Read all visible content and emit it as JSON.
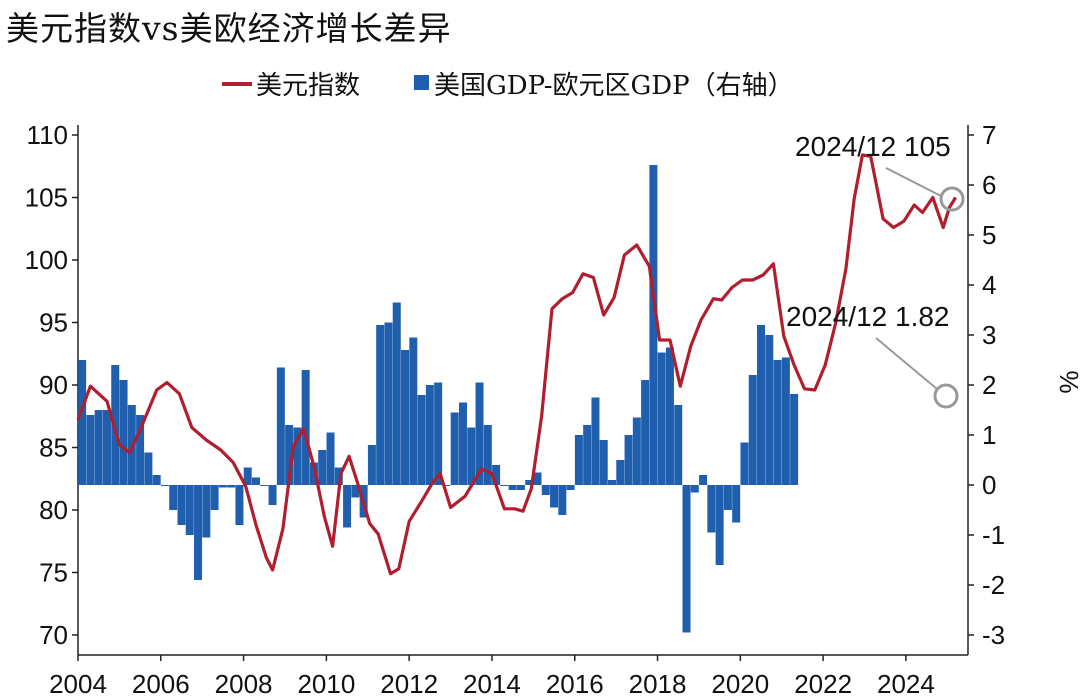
{
  "title": "美元指数vs美欧经济增长差异",
  "legend": [
    {
      "label": "美元指数",
      "color": "#b01e2f",
      "kind": "line"
    },
    {
      "label": "美国GDP-欧元区GDP（右轴）",
      "color": "#1f5fae",
      "kind": "bar"
    }
  ],
  "chart_data": {
    "type": "bar+line",
    "x_ticks": [
      "2004",
      "2006",
      "2008",
      "2010",
      "2012",
      "2014",
      "2016",
      "2018",
      "2020",
      "2022",
      "2024"
    ],
    "y_left": {
      "range": [
        68,
        112
      ],
      "ticks": [
        "70",
        "75",
        "80",
        "85",
        "90",
        "95",
        "100",
        "105",
        "110"
      ]
    },
    "y_right": {
      "label": "%",
      "range": [
        -3.3,
        7.3
      ],
      "ticks": [
        "-3",
        "-2",
        "-1",
        "0",
        "1",
        "2",
        "3",
        "4",
        "5",
        "6",
        "7"
      ]
    },
    "series": [
      {
        "name": "美元指数",
        "kind": "line",
        "axis": "left",
        "points": [
          [
            2004.0,
            87.2
          ],
          [
            2004.3,
            89.9
          ],
          [
            2004.7,
            88.7
          ],
          [
            2005.0,
            85.2
          ],
          [
            2005.25,
            84.6
          ],
          [
            2005.5,
            86.4
          ],
          [
            2005.9,
            89.6
          ],
          [
            2006.15,
            90.2
          ],
          [
            2006.45,
            89.3
          ],
          [
            2006.75,
            86.6
          ],
          [
            2007.1,
            85.6
          ],
          [
            2007.45,
            84.8
          ],
          [
            2007.75,
            83.8
          ],
          [
            2008.05,
            81.9
          ],
          [
            2008.3,
            78.8
          ],
          [
            2008.55,
            76.2
          ],
          [
            2008.7,
            75.2
          ],
          [
            2008.95,
            78.5
          ],
          [
            2009.2,
            85.1
          ],
          [
            2009.45,
            86.5
          ],
          [
            2009.7,
            83.5
          ],
          [
            2009.95,
            79.5
          ],
          [
            2010.15,
            77.1
          ],
          [
            2010.35,
            82.9
          ],
          [
            2010.55,
            84.3
          ],
          [
            2010.75,
            82.2
          ],
          [
            2011.05,
            78.9
          ],
          [
            2011.25,
            78.1
          ],
          [
            2011.55,
            74.9
          ],
          [
            2011.75,
            75.3
          ],
          [
            2012.0,
            79.1
          ],
          [
            2012.3,
            80.7
          ],
          [
            2012.55,
            82.1
          ],
          [
            2012.75,
            82.9
          ],
          [
            2013.0,
            80.2
          ],
          [
            2013.35,
            81.1
          ],
          [
            2013.75,
            83.3
          ],
          [
            2014.0,
            82.9
          ],
          [
            2014.3,
            80.1
          ],
          [
            2014.55,
            80.1
          ],
          [
            2014.75,
            79.9
          ],
          [
            2014.95,
            81.7
          ],
          [
            2015.2,
            87.5
          ],
          [
            2015.45,
            96.1
          ],
          [
            2015.7,
            96.9
          ],
          [
            2015.95,
            97.4
          ],
          [
            2016.2,
            98.9
          ],
          [
            2016.45,
            98.6
          ],
          [
            2016.7,
            95.6
          ],
          [
            2016.95,
            97.0
          ],
          [
            2017.2,
            100.4
          ],
          [
            2017.5,
            101.2
          ],
          [
            2017.8,
            99.5
          ],
          [
            2018.05,
            93.6
          ],
          [
            2018.3,
            93.6
          ],
          [
            2018.55,
            89.9
          ],
          [
            2018.8,
            93.1
          ],
          [
            2019.05,
            95.2
          ],
          [
            2019.35,
            96.9
          ],
          [
            2019.55,
            96.8
          ],
          [
            2019.8,
            97.8
          ],
          [
            2020.05,
            98.4
          ],
          [
            2020.3,
            98.4
          ],
          [
            2020.55,
            98.8
          ],
          [
            2020.8,
            99.7
          ],
          [
            2021.05,
            93.9
          ],
          [
            2021.3,
            91.6
          ],
          [
            2021.55,
            89.7
          ],
          [
            2021.8,
            89.6
          ],
          [
            2022.05,
            91.6
          ],
          [
            2022.3,
            94.9
          ],
          [
            2022.55,
            99.3
          ],
          [
            2022.75,
            104.9
          ],
          [
            2022.95,
            108.4
          ],
          [
            2023.15,
            108.3
          ],
          [
            2023.45,
            103.3
          ],
          [
            2023.7,
            102.6
          ],
          [
            2023.95,
            103.1
          ],
          [
            2024.2,
            104.4
          ],
          [
            2024.4,
            103.8
          ],
          [
            2024.65,
            105.0
          ],
          [
            2024.9,
            102.6
          ],
          [
            2025.05,
            104.2
          ],
          [
            2025.2,
            105.0
          ]
        ]
      },
      {
        "name": "美国GDP-欧元区GDP（右轴）",
        "kind": "bar",
        "axis": "right",
        "points": [
          [
            2004.1,
            2.5
          ],
          [
            2004.3,
            1.4
          ],
          [
            2004.5,
            1.5
          ],
          [
            2004.7,
            1.5
          ],
          [
            2004.9,
            2.4
          ],
          [
            2005.1,
            2.1
          ],
          [
            2005.3,
            1.6
          ],
          [
            2005.5,
            1.4
          ],
          [
            2005.7,
            0.65
          ],
          [
            2005.9,
            0.2
          ],
          [
            2006.1,
            0.0
          ],
          [
            2006.3,
            -0.5
          ],
          [
            2006.5,
            -0.8
          ],
          [
            2006.7,
            -1.0
          ],
          [
            2006.9,
            -1.9
          ],
          [
            2007.1,
            -1.05
          ],
          [
            2007.3,
            -0.5
          ],
          [
            2007.5,
            -0.05
          ],
          [
            2007.7,
            -0.05
          ],
          [
            2007.9,
            -0.8
          ],
          [
            2008.1,
            0.35
          ],
          [
            2008.3,
            0.15
          ],
          [
            2008.5,
            0.0
          ],
          [
            2008.7,
            -0.4
          ],
          [
            2008.9,
            2.35
          ],
          [
            2009.1,
            1.2
          ],
          [
            2009.3,
            1.15
          ],
          [
            2009.5,
            2.3
          ],
          [
            2009.7,
            0.45
          ],
          [
            2009.9,
            0.7
          ],
          [
            2010.1,
            1.05
          ],
          [
            2010.3,
            0.35
          ],
          [
            2010.5,
            -0.85
          ],
          [
            2010.7,
            -0.25
          ],
          [
            2010.9,
            -0.65
          ],
          [
            2011.1,
            0.8
          ],
          [
            2011.3,
            3.2
          ],
          [
            2011.5,
            3.25
          ],
          [
            2011.7,
            3.65
          ],
          [
            2011.9,
            2.7
          ],
          [
            2012.1,
            2.95
          ],
          [
            2012.3,
            1.8
          ],
          [
            2012.5,
            2.0
          ],
          [
            2012.7,
            2.05
          ],
          [
            2012.9,
            0.0
          ],
          [
            2013.1,
            1.45
          ],
          [
            2013.3,
            1.65
          ],
          [
            2013.5,
            1.15
          ],
          [
            2013.7,
            2.05
          ],
          [
            2013.9,
            1.2
          ],
          [
            2014.1,
            0.4
          ],
          [
            2014.3,
            0.0
          ],
          [
            2014.5,
            -0.1
          ],
          [
            2014.7,
            -0.1
          ],
          [
            2014.9,
            0.1
          ],
          [
            2015.1,
            0.25
          ],
          [
            2015.3,
            -0.2
          ],
          [
            2015.5,
            -0.45
          ],
          [
            2015.7,
            -0.6
          ],
          [
            2015.9,
            -0.1
          ],
          [
            2016.1,
            1.0
          ],
          [
            2016.3,
            1.2
          ],
          [
            2016.5,
            1.75
          ],
          [
            2016.7,
            0.9
          ],
          [
            2016.9,
            0.1
          ],
          [
            2017.1,
            0.5
          ],
          [
            2017.3,
            1.0
          ],
          [
            2017.5,
            1.35
          ],
          [
            2017.7,
            2.1
          ],
          [
            2017.9,
            6.4
          ],
          [
            2018.1,
            2.65
          ],
          [
            2018.3,
            2.75
          ],
          [
            2018.5,
            1.6
          ],
          [
            2018.7,
            -2.95
          ],
          [
            2018.9,
            -0.15
          ],
          [
            2019.1,
            0.2
          ],
          [
            2019.3,
            -0.95
          ],
          [
            2019.5,
            -1.6
          ],
          [
            2019.7,
            -0.5
          ],
          [
            2019.9,
            -0.75
          ],
          [
            2020.1,
            0.85
          ],
          [
            2020.3,
            2.2
          ],
          [
            2020.5,
            3.2
          ],
          [
            2020.7,
            3.0
          ],
          [
            2020.9,
            2.5
          ],
          [
            2021.1,
            2.55
          ],
          [
            2021.3,
            1.82
          ]
        ]
      }
    ],
    "annotations": [
      {
        "text": "2024/12 105",
        "series": "美元指数",
        "x": 2025.05,
        "y": 105
      },
      {
        "text": "2024/12 1.82",
        "series": "美国GDP-欧元区GDP（右轴）",
        "x": 2025.05,
        "y": 1.82
      }
    ],
    "x_range": [
      2004.0,
      2025.5
    ]
  }
}
